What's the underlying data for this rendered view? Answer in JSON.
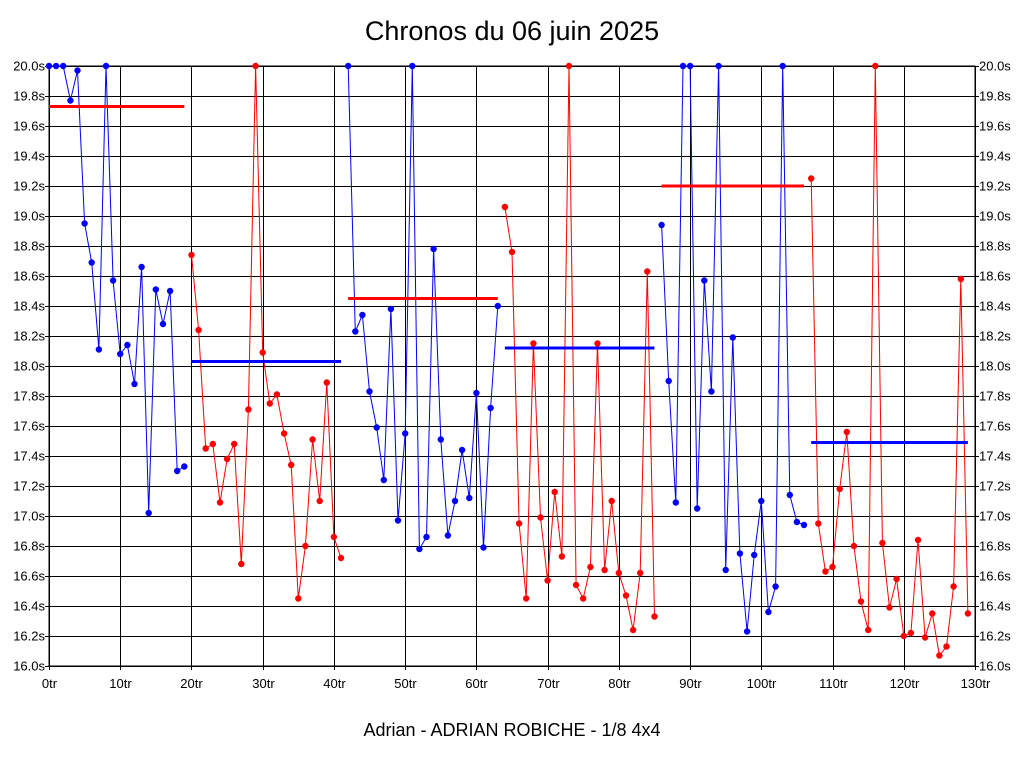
{
  "chart_data": {
    "type": "line",
    "title": "Chronos du 06 juin 2025",
    "footer": "Adrian - ADRIAN ROBICHE - 1/8 4x4",
    "xlim": [
      0,
      130
    ],
    "ylim": [
      16.0,
      20.0
    ],
    "x_ticks": [
      {
        "value": 0,
        "label": "0tr"
      },
      {
        "value": 10,
        "label": "10tr"
      },
      {
        "value": 20,
        "label": "20tr"
      },
      {
        "value": 30,
        "label": "30tr"
      },
      {
        "value": 40,
        "label": "40tr"
      },
      {
        "value": 50,
        "label": "50tr"
      },
      {
        "value": 60,
        "label": "60tr"
      },
      {
        "value": 70,
        "label": "70tr"
      },
      {
        "value": 80,
        "label": "80tr"
      },
      {
        "value": 90,
        "label": "90tr"
      },
      {
        "value": 100,
        "label": "100tr"
      },
      {
        "value": 110,
        "label": "110tr"
      },
      {
        "value": 120,
        "label": "120tr"
      },
      {
        "value": 130,
        "label": "130tr"
      }
    ],
    "y_ticks": [
      {
        "value": 16.0,
        "label": "16.0s"
      },
      {
        "value": 16.2,
        "label": "16.2s"
      },
      {
        "value": 16.4,
        "label": "16.4s"
      },
      {
        "value": 16.6,
        "label": "16.6s"
      },
      {
        "value": 16.8,
        "label": "16.8s"
      },
      {
        "value": 17.0,
        "label": "17.0s"
      },
      {
        "value": 17.2,
        "label": "17.2s"
      },
      {
        "value": 17.4,
        "label": "17.4s"
      },
      {
        "value": 17.6,
        "label": "17.6s"
      },
      {
        "value": 17.8,
        "label": "17.8s"
      },
      {
        "value": 18.0,
        "label": "18.0s"
      },
      {
        "value": 18.2,
        "label": "18.2s"
      },
      {
        "value": 18.4,
        "label": "18.4s"
      },
      {
        "value": 18.6,
        "label": "18.6s"
      },
      {
        "value": 18.8,
        "label": "18.8s"
      },
      {
        "value": 19.0,
        "label": "19.0s"
      },
      {
        "value": 19.2,
        "label": "19.2s"
      },
      {
        "value": 19.4,
        "label": "19.4s"
      },
      {
        "value": 19.6,
        "label": "19.6s"
      },
      {
        "value": 19.8,
        "label": "19.8s"
      },
      {
        "value": 20.0,
        "label": "20.0s"
      }
    ],
    "grid": true,
    "series": [
      {
        "name": "segment-1",
        "color": "#0000ff",
        "x": [
          0,
          1,
          2,
          3,
          4,
          5,
          6,
          7,
          8,
          9,
          10,
          11,
          12,
          13,
          14,
          15,
          16,
          17,
          18,
          19
        ],
        "values": [
          20.0,
          20.0,
          20.0,
          19.77,
          19.97,
          18.95,
          18.69,
          18.11,
          20.0,
          18.57,
          18.08,
          18.14,
          17.88,
          18.66,
          17.02,
          18.51,
          18.28,
          18.5,
          17.3,
          17.33
        ]
      },
      {
        "name": "segment-2",
        "color": "#ff0000",
        "x": [
          20,
          21,
          22,
          23,
          24,
          25,
          26,
          27,
          28,
          29,
          30,
          31,
          32,
          33,
          34,
          35,
          36,
          37,
          38,
          39,
          40,
          41
        ],
        "values": [
          18.74,
          18.24,
          17.45,
          17.48,
          17.09,
          17.38,
          17.48,
          16.68,
          17.71,
          20.0,
          18.09,
          17.75,
          17.81,
          17.55,
          17.34,
          16.45,
          16.8,
          17.51,
          17.1,
          17.89,
          16.86,
          16.72
        ]
      },
      {
        "name": "segment-3",
        "color": "#0000ff",
        "x": [
          42,
          43,
          44,
          45,
          46,
          47,
          48,
          49,
          50,
          51,
          52,
          53,
          54,
          55,
          56,
          57,
          58,
          59,
          60,
          61,
          62,
          63
        ],
        "values": [
          20.0,
          18.23,
          18.34,
          17.83,
          17.59,
          17.24,
          18.38,
          16.97,
          17.55,
          20.0,
          16.78,
          16.86,
          18.78,
          17.51,
          16.87,
          17.1,
          17.44,
          17.12,
          17.82,
          16.79,
          17.72,
          18.4
        ]
      },
      {
        "name": "segment-4",
        "color": "#ff0000",
        "x": [
          64,
          65,
          66,
          67,
          68,
          69,
          70,
          71,
          72,
          73,
          74,
          75,
          76,
          77,
          78,
          79,
          80,
          81,
          82,
          83,
          84,
          85
        ],
        "values": [
          19.06,
          18.76,
          16.95,
          16.45,
          18.15,
          16.99,
          16.57,
          17.16,
          16.73,
          20.0,
          16.54,
          16.45,
          16.66,
          18.15,
          16.64,
          17.1,
          16.62,
          16.47,
          16.24,
          16.62,
          18.63,
          16.33
        ]
      },
      {
        "name": "segment-5",
        "color": "#0000ff",
        "x": [
          86,
          87,
          88,
          89,
          90,
          91,
          92,
          93,
          94,
          95,
          96,
          97,
          98,
          99,
          100,
          101,
          102,
          103,
          104,
          105,
          106
        ],
        "values": [
          18.94,
          17.9,
          17.09,
          20.0,
          20.0,
          17.05,
          18.57,
          17.83,
          20.0,
          16.64,
          18.19,
          16.75,
          16.23,
          16.74,
          17.1,
          16.36,
          16.53,
          20.0,
          17.14,
          16.96,
          16.94
        ]
      },
      {
        "name": "segment-6",
        "color": "#ff0000",
        "x": [
          107,
          108,
          109,
          110,
          111,
          112,
          113,
          114,
          115,
          116,
          117,
          118,
          119,
          120,
          121,
          122,
          123,
          124,
          125,
          126,
          127,
          128,
          129
        ],
        "values": [
          19.25,
          16.95,
          16.63,
          16.66,
          17.18,
          17.56,
          16.8,
          16.43,
          16.24,
          20.0,
          16.82,
          16.39,
          16.58,
          16.2,
          16.22,
          16.84,
          16.19,
          16.35,
          16.07,
          16.13,
          16.53,
          18.58,
          16.35
        ]
      }
    ],
    "averages": [
      {
        "color": "#ff0000",
        "x_start": 0,
        "x_end": 19,
        "value": 19.73
      },
      {
        "color": "#0000ff",
        "x_start": 20,
        "x_end": 41,
        "value": 18.03
      },
      {
        "color": "#ff0000",
        "x_start": 42,
        "x_end": 63,
        "value": 18.45
      },
      {
        "color": "#0000ff",
        "x_start": 64,
        "x_end": 85,
        "value": 18.12
      },
      {
        "color": "#ff0000",
        "x_start": 86,
        "x_end": 106,
        "value": 19.2
      },
      {
        "color": "#0000ff",
        "x_start": 107,
        "x_end": 129,
        "value": 17.49
      }
    ]
  }
}
